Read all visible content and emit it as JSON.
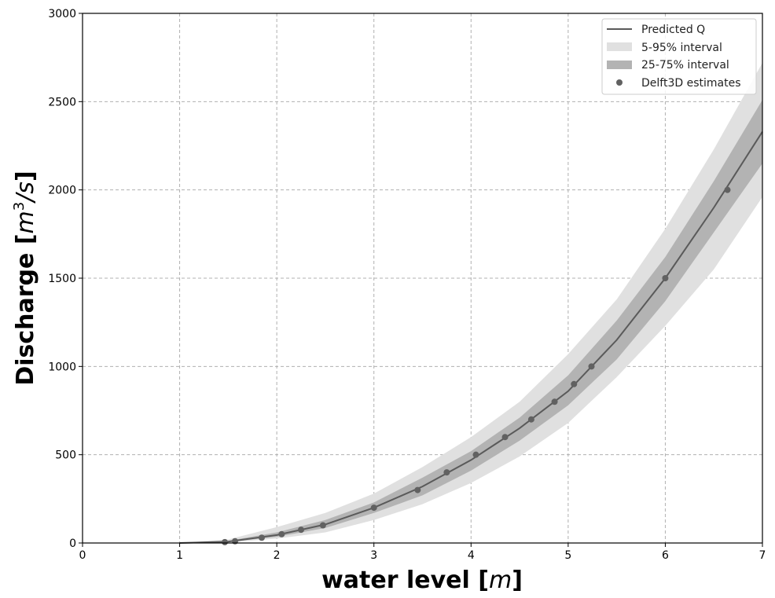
{
  "chart_data": {
    "type": "line",
    "title": "",
    "xlabel": "water level [m]",
    "xlabel_main": "water level [",
    "xlabel_unit": "m",
    "xlabel_close": "]",
    "ylabel": "Discharge [m^3/s]",
    "ylabel_main": "Discharge [",
    "ylabel_unit": "m",
    "ylabel_exp": "3",
    "ylabel_rest": "/s",
    "ylabel_close": "]",
    "xlim": [
      0,
      7
    ],
    "ylim": [
      0,
      3000
    ],
    "xticks": [
      0,
      1,
      2,
      3,
      4,
      5,
      6,
      7
    ],
    "yticks": [
      0,
      500,
      1000,
      1500,
      2000,
      2500,
      3000
    ],
    "grid": true,
    "legend_position": "top-right",
    "legend": [
      "Predicted Q",
      "5-95% interval",
      "25-75% interval",
      "Delft3D estimates"
    ],
    "band_x": [
      1.0,
      1.5,
      2.0,
      2.5,
      3.0,
      3.5,
      4.0,
      4.5,
      5.0,
      5.5,
      6.0,
      6.5,
      7.0
    ],
    "predicted_q": [
      0,
      8,
      45,
      105,
      200,
      320,
      470,
      650,
      860,
      1150,
      1500,
      1900,
      2330
    ],
    "interval_5_95": {
      "upper": [
        0,
        20,
        90,
        170,
        280,
        430,
        600,
        800,
        1070,
        1380,
        1780,
        2230,
        2720
      ],
      "lower": [
        0,
        3,
        25,
        60,
        130,
        220,
        340,
        490,
        680,
        940,
        1230,
        1550,
        1960
      ]
    },
    "interval_25_75": {
      "upper": [
        0,
        12,
        60,
        130,
        230,
        370,
        520,
        710,
        950,
        1260,
        1620,
        2050,
        2510
      ],
      "lower": [
        0,
        5,
        35,
        85,
        170,
        270,
        410,
        580,
        780,
        1040,
        1370,
        1760,
        2150
      ]
    },
    "delft3d_estimates": {
      "x": [
        1.465,
        1.57,
        1.845,
        2.05,
        2.25,
        2.475,
        3.0,
        3.45,
        3.75,
        4.05,
        4.35,
        4.62,
        4.86,
        5.06,
        5.24,
        6.0,
        6.64
      ],
      "y": [
        5,
        10,
        30,
        50,
        75,
        100,
        200,
        300,
        400,
        500,
        600,
        700,
        800,
        900,
        1000,
        1500,
        2000
      ]
    },
    "colors": {
      "line": "#5a5a5a",
      "band_outer": "#e0e0e0",
      "band_inner": "#b3b3b3",
      "points": "#616161"
    }
  }
}
